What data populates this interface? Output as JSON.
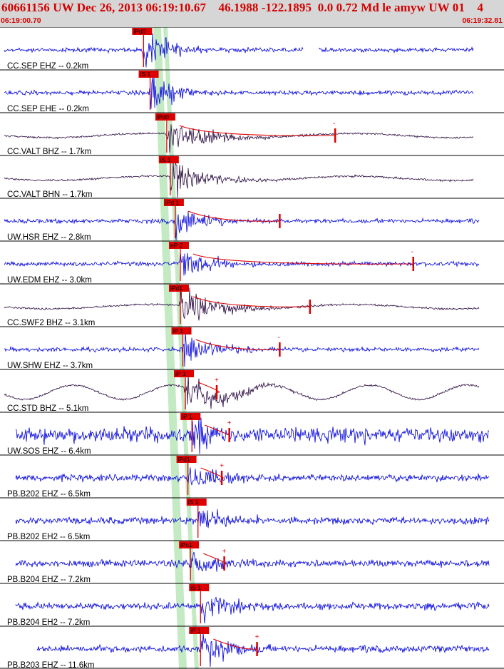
{
  "header": {
    "title": "60661156 UW Dec 26, 2013 06:19:10.67    46.1988 -122.1895  0.0 0.72 Md le amyw UW 01    4",
    "time_start": "06:19:00.70",
    "time_end": "06:19:32.81"
  },
  "colors": {
    "header_bg": "#d6d6d6",
    "header_text": "#d40000",
    "trace_blue": "#0000dd",
    "trace_dark": "#2a0a40",
    "pick_red": "#dd0000",
    "window_green": "#b8e6b8"
  },
  "traces": [
    {
      "label": "CC.SEP EHZ -- 0.2km",
      "pick": "iPd0",
      "color": "blue",
      "pick_t": 0.282,
      "coda_t": null,
      "plus": null
    },
    {
      "label": "CC.SEP EHE -- 0.2km",
      "pick": "iS 1",
      "color": "blue",
      "pick_t": 0.295,
      "coda_t": null,
      "plus": null
    },
    {
      "label": "CC.VALT BHZ -- 1.7km",
      "pick": "iPd0",
      "color": "dark",
      "pick_t": 0.328,
      "coda_t": 0.665,
      "plus": "-"
    },
    {
      "label": "CC.VALT BHN -- 1.7km",
      "pick": "iS 1",
      "color": "dark",
      "pick_t": 0.335,
      "coda_t": null,
      "plus": null
    },
    {
      "label": "UW.HSR EHZ -- 2.8km",
      "pick": "iPd 1",
      "color": "blue",
      "pick_t": 0.345,
      "coda_t": 0.555,
      "plus": null
    },
    {
      "label": "UW.EDM EHZ -- 3.0km",
      "pick": "eP 2",
      "color": "blue",
      "pick_t": 0.355,
      "coda_t": 0.82,
      "plus": "-"
    },
    {
      "label": "CC.SWF2 BHZ -- 3.1km",
      "pick": "iPd1",
      "color": "dark",
      "pick_t": 0.355,
      "coda_t": 0.615,
      "plus": null
    },
    {
      "label": "UW.SHW EHZ -- 3.7km",
      "pick": "iP 1",
      "color": "blue",
      "pick_t": 0.36,
      "coda_t": 0.555,
      "plus": "-"
    },
    {
      "label": "CC.STD BHZ -- 5.1km",
      "pick": "iP 1",
      "color": "dark",
      "pick_t": 0.365,
      "coda_t": 0.43,
      "plus": "+"
    },
    {
      "label": "UW.SOS EHZ -- 6.4km",
      "pick": "iP 1",
      "color": "blue",
      "pick_t": 0.378,
      "coda_t": 0.455,
      "plus": "+"
    },
    {
      "label": "PB.B202 EHZ -- 6.5km",
      "pick": "iPd1",
      "color": "blue",
      "pick_t": 0.37,
      "coda_t": 0.44,
      "plus": "+"
    },
    {
      "label": "PB.B202 EH2 -- 6.5km",
      "pick": "iS 1",
      "color": "blue",
      "pick_t": 0.39,
      "coda_t": null,
      "plus": null
    },
    {
      "label": "PB.B204 EHZ -- 7.2km",
      "pick": "iPc1",
      "color": "blue",
      "pick_t": 0.375,
      "coda_t": 0.445,
      "plus": "+"
    },
    {
      "label": "PB.B204 EH2 -- 7.2km",
      "pick": "iS 1",
      "color": "blue",
      "pick_t": 0.395,
      "coda_t": null,
      "plus": null
    },
    {
      "label": "PB.B203 EHZ -- 11.6km",
      "pick": "iP 1",
      "color": "blue",
      "pick_t": 0.395,
      "coda_t": 0.51,
      "plus": "+"
    }
  ]
}
